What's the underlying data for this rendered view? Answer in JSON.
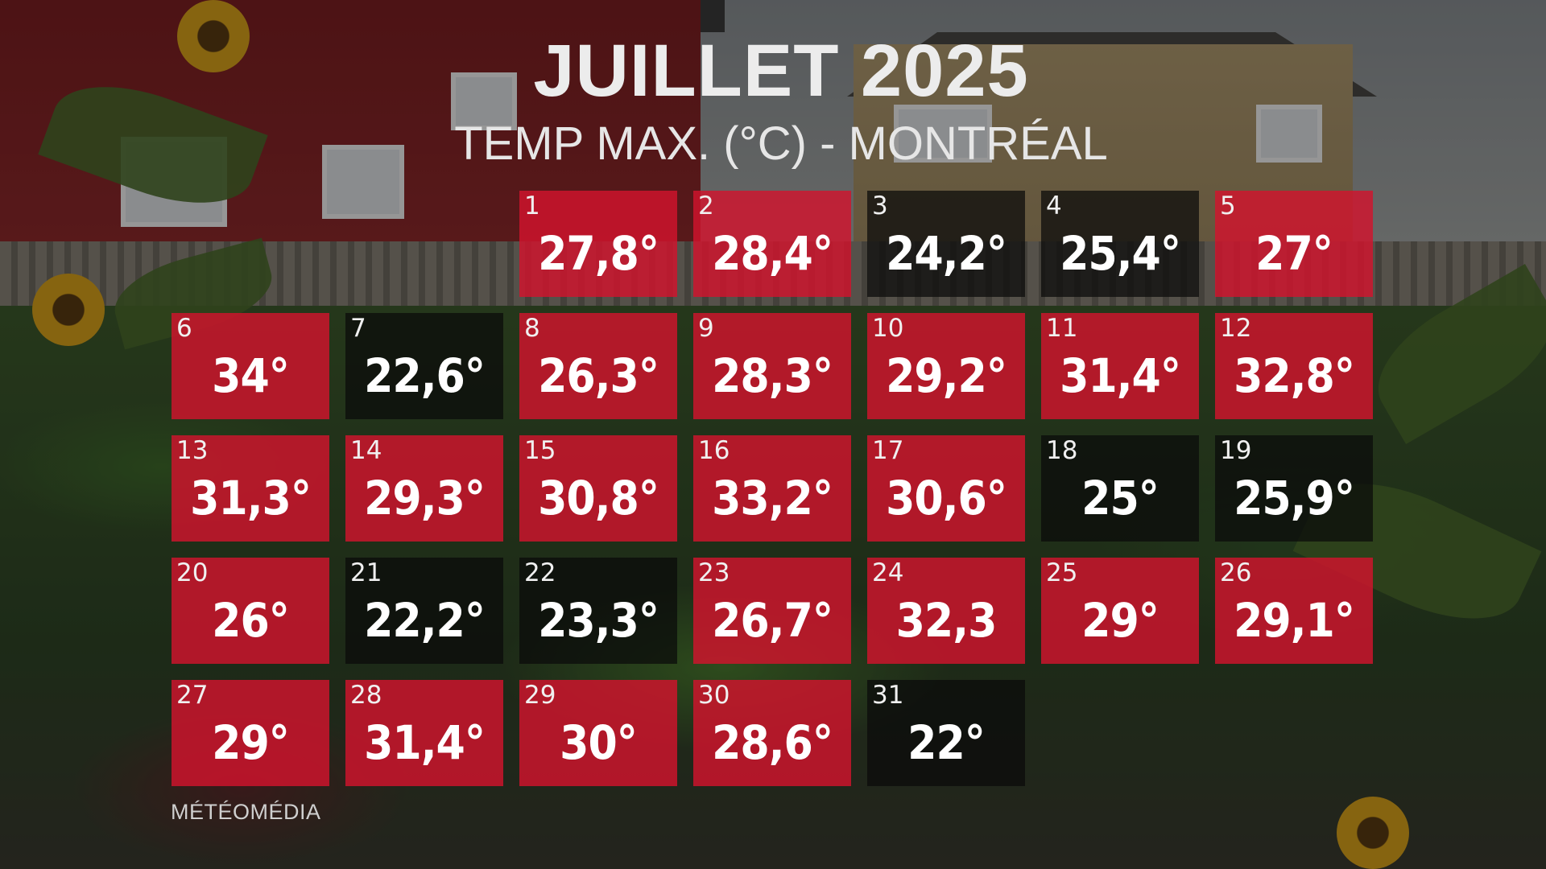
{
  "title": "JUILLET 2025",
  "subtitle": "TEMP MAX. (°C) - MONTRÉAL",
  "brand": "MÉTÉOMÉDIA",
  "colors": {
    "hot": "#d2142d",
    "cool": "#0a0a0a",
    "text": "#ffffff"
  },
  "first_weekday_offset": 2,
  "days": [
    {
      "day": "1",
      "temp": "27,8°",
      "status": "hot"
    },
    {
      "day": "2",
      "temp": "28,4°",
      "status": "hot"
    },
    {
      "day": "3",
      "temp": "24,2°",
      "status": "cool"
    },
    {
      "day": "4",
      "temp": "25,4°",
      "status": "cool"
    },
    {
      "day": "5",
      "temp": "27°",
      "status": "hot"
    },
    {
      "day": "6",
      "temp": "34°",
      "status": "hot"
    },
    {
      "day": "7",
      "temp": "22,6°",
      "status": "cool"
    },
    {
      "day": "8",
      "temp": "26,3°",
      "status": "hot"
    },
    {
      "day": "9",
      "temp": "28,3°",
      "status": "hot"
    },
    {
      "day": "10",
      "temp": "29,2°",
      "status": "hot"
    },
    {
      "day": "11",
      "temp": "31,4°",
      "status": "hot"
    },
    {
      "day": "12",
      "temp": "32,8°",
      "status": "hot"
    },
    {
      "day": "13",
      "temp": "31,3°",
      "status": "hot"
    },
    {
      "day": "14",
      "temp": "29,3°",
      "status": "hot"
    },
    {
      "day": "15",
      "temp": "30,8°",
      "status": "hot"
    },
    {
      "day": "16",
      "temp": "33,2°",
      "status": "hot"
    },
    {
      "day": "17",
      "temp": "30,6°",
      "status": "hot"
    },
    {
      "day": "18",
      "temp": "25°",
      "status": "cool"
    },
    {
      "day": "19",
      "temp": "25,9°",
      "status": "cool"
    },
    {
      "day": "20",
      "temp": "26°",
      "status": "hot"
    },
    {
      "day": "21",
      "temp": "22,2°",
      "status": "cool"
    },
    {
      "day": "22",
      "temp": "23,3°",
      "status": "cool"
    },
    {
      "day": "23",
      "temp": "26,7°",
      "status": "hot"
    },
    {
      "day": "24",
      "temp": "32,3",
      "status": "hot"
    },
    {
      "day": "25",
      "temp": "29°",
      "status": "hot"
    },
    {
      "day": "26",
      "temp": "29,1°",
      "status": "hot"
    },
    {
      "day": "27",
      "temp": "29°",
      "status": "hot"
    },
    {
      "day": "28",
      "temp": "31,4°",
      "status": "hot"
    },
    {
      "day": "29",
      "temp": "30°",
      "status": "hot"
    },
    {
      "day": "30",
      "temp": "28,6°",
      "status": "hot"
    },
    {
      "day": "31",
      "temp": "22°",
      "status": "cool"
    }
  ]
}
